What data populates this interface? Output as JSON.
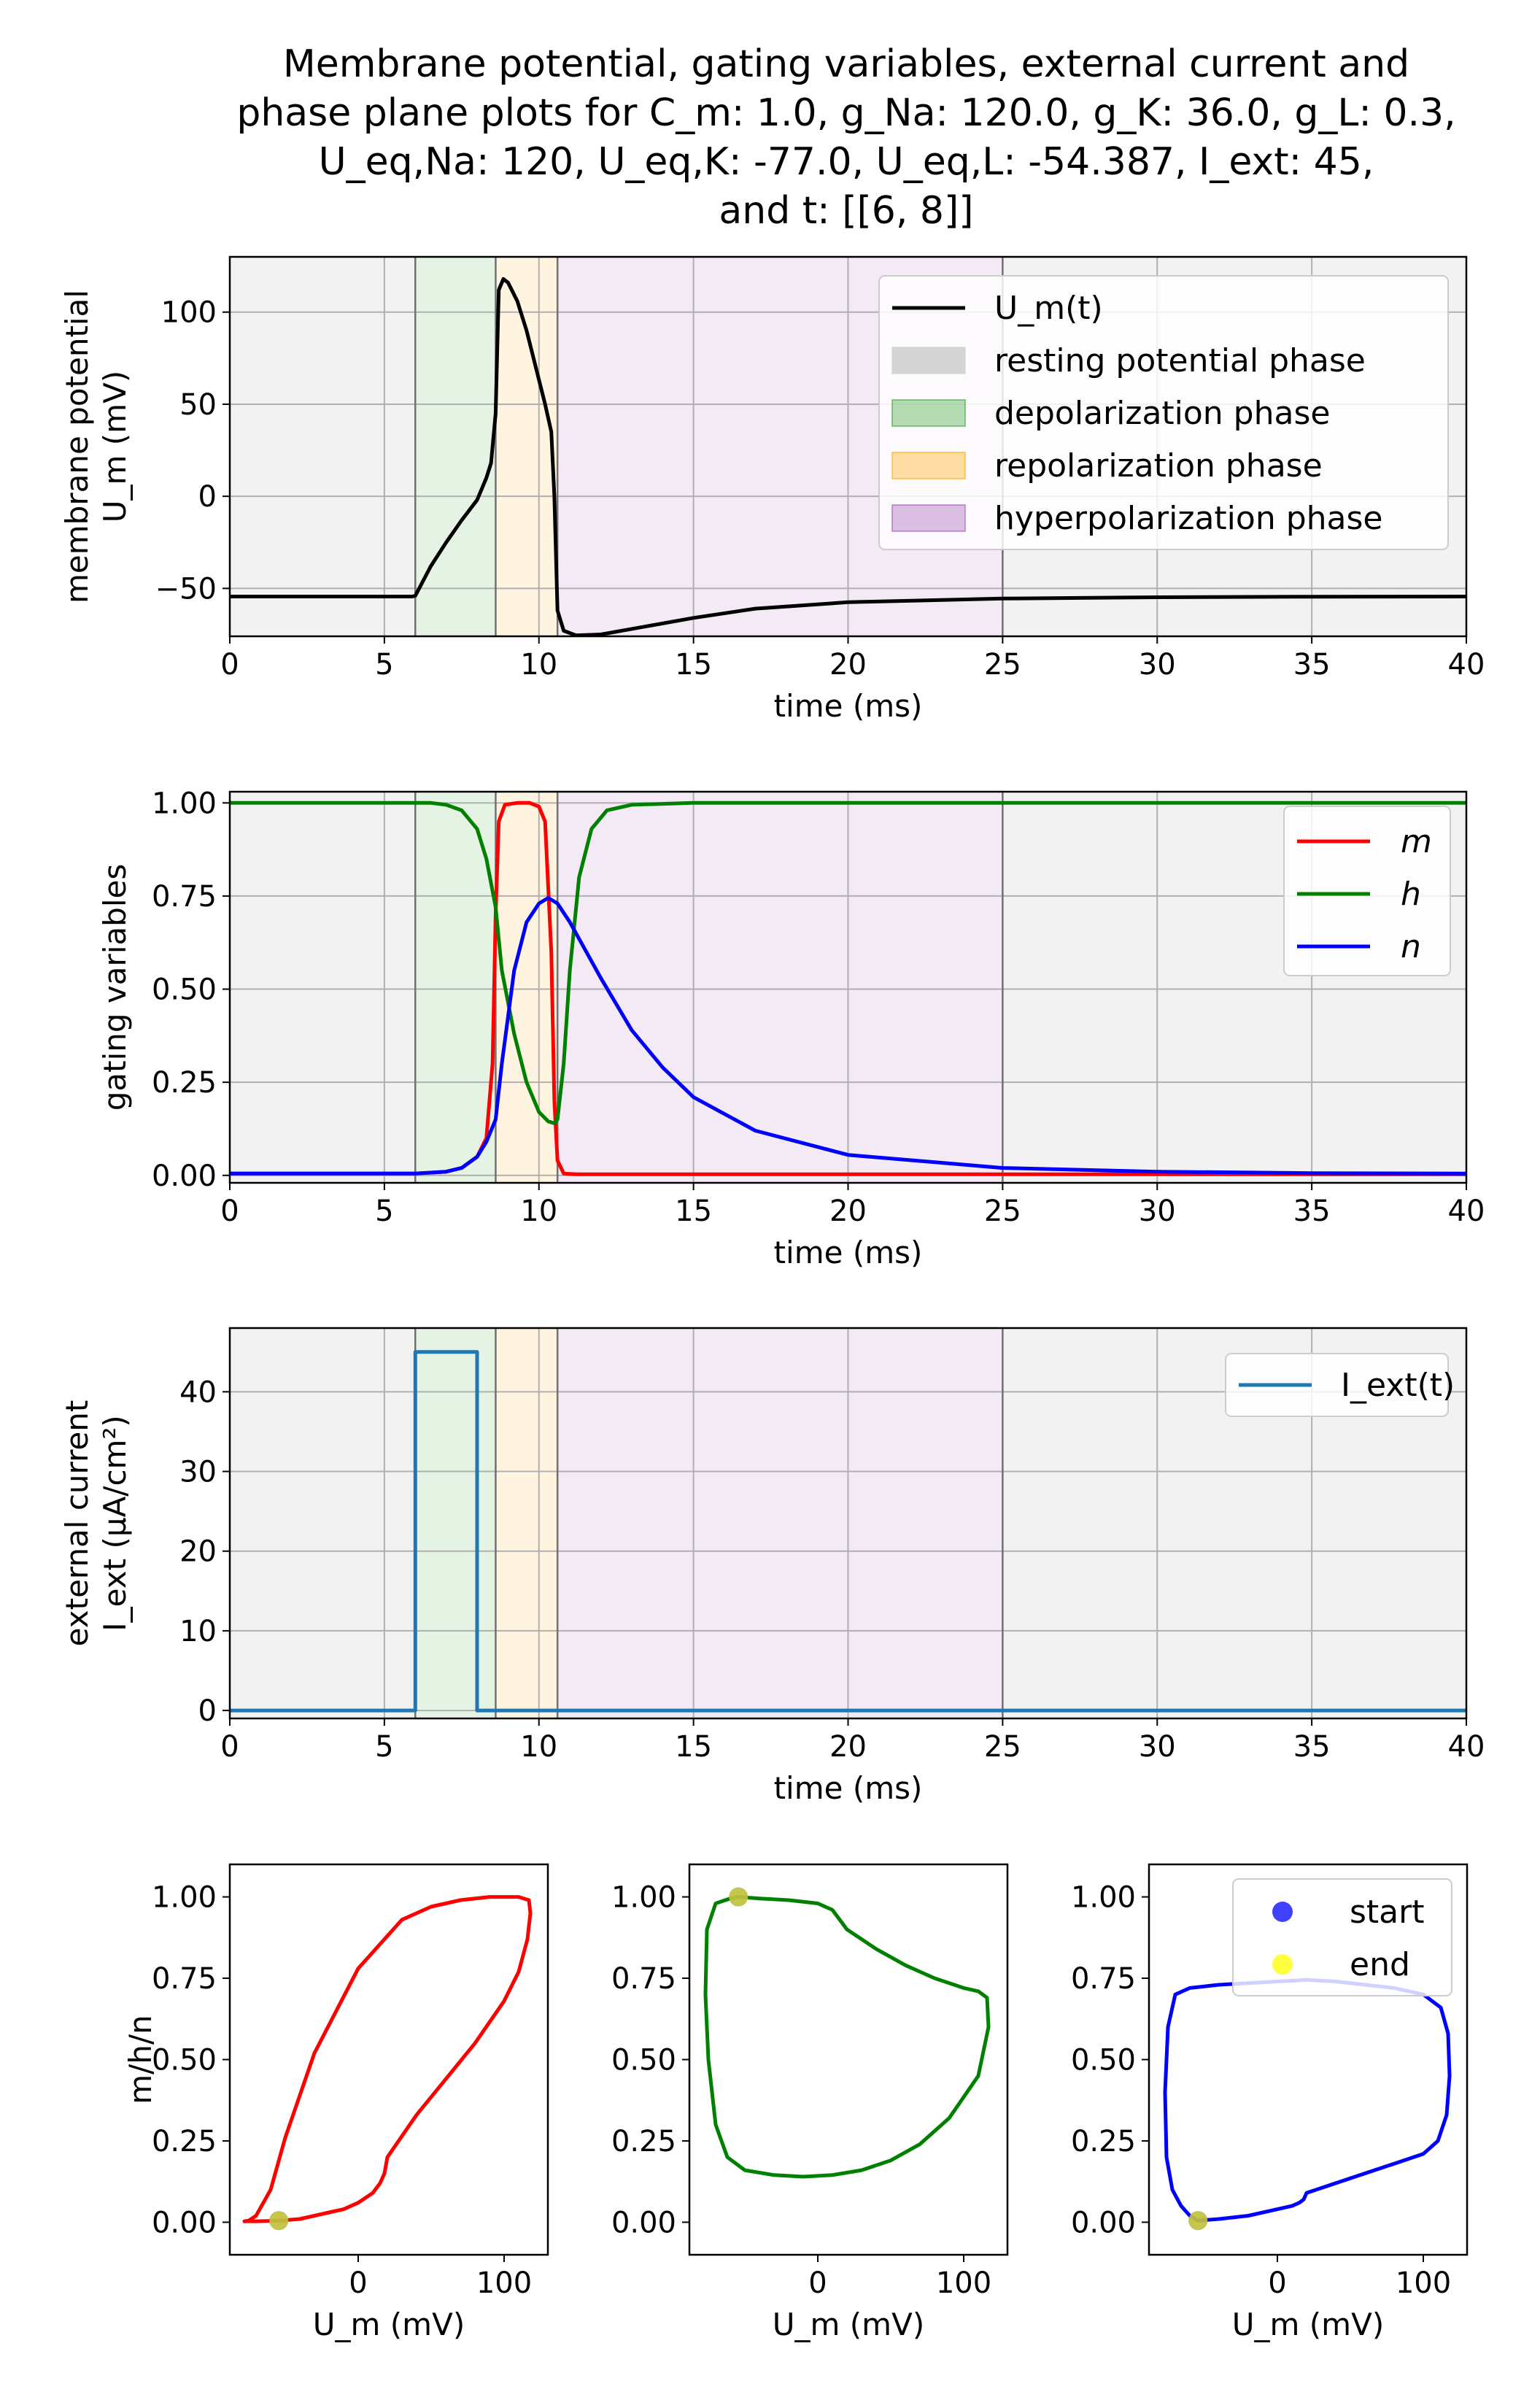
{
  "figure": {
    "title_lines": [
      "Membrane potential, gating variables, external current and",
      "phase plane plots for C_m: 1.0, g_Na: 120.0, g_K: 36.0, g_L: 0.3,",
      "U_eq,Na: 120, U_eq,K: -77.0, U_eq,L: -54.387, I_ext: 45,",
      "and t: [[6, 8]]"
    ]
  },
  "chart_data": [
    {
      "id": "membrane",
      "type": "line",
      "xlabel": "time (ms)",
      "ylabel_lines": [
        "membrane potential",
        "U_m (mV)"
      ],
      "xlim": [
        0,
        40
      ],
      "ylim": [
        -76,
        130
      ],
      "xticks": [
        0,
        5,
        10,
        15,
        20,
        25,
        30,
        35,
        40
      ],
      "yticks": [
        -50,
        0,
        50,
        100
      ],
      "grid": true,
      "legend_position": "upper right",
      "phases": [
        {
          "label": "resting potential phase",
          "color": "#d0d0d0",
          "legend_opacity": 0.9
        },
        {
          "label": "depolarization phase",
          "color": "#2ca02c",
          "legend_opacity": 0.35
        },
        {
          "label": "repolarization phase",
          "color": "#ffa500",
          "legend_opacity": 0.35
        },
        {
          "label": "hyperpolarization phase",
          "color": "#9b4fb0",
          "legend_opacity": 0.35
        }
      ],
      "phase_spans": [
        {
          "phase": 0,
          "x0": 0,
          "x1": 6
        },
        {
          "phase": 1,
          "x0": 6,
          "x1": 8.6
        },
        {
          "phase": 2,
          "x0": 8.6,
          "x1": 10.6
        },
        {
          "phase": 3,
          "x0": 10.6,
          "x1": 25
        },
        {
          "phase": 0,
          "x0": 25,
          "x1": 40
        }
      ],
      "phase_boundaries": [
        6,
        8.6,
        10.6,
        25
      ],
      "series": [
        {
          "name": "U_m(t)",
          "color": "#000000",
          "x": [
            0,
            5.9,
            6.0,
            6.5,
            7.0,
            7.5,
            8.0,
            8.3,
            8.45,
            8.6,
            8.7,
            8.85,
            9.0,
            9.3,
            9.6,
            9.9,
            10.2,
            10.4,
            10.5,
            10.6,
            10.8,
            11.2,
            12,
            13,
            15,
            17,
            20,
            25,
            30,
            35,
            40
          ],
          "y": [
            -54.4,
            -54.4,
            -54,
            -38,
            -25,
            -13,
            -2,
            10,
            18,
            45,
            112,
            118,
            116,
            106,
            90,
            70,
            50,
            35,
            0,
            -62,
            -73,
            -75.5,
            -75,
            -72,
            -66,
            -61,
            -57.5,
            -55.5,
            -54.8,
            -54.5,
            -54.4
          ]
        }
      ]
    },
    {
      "id": "gating",
      "type": "line",
      "xlabel": "time (ms)",
      "ylabel_lines": [
        "gating variables"
      ],
      "xlim": [
        0,
        40
      ],
      "ylim": [
        -0.02,
        1.03
      ],
      "xticks": [
        0,
        5,
        10,
        15,
        20,
        25,
        30,
        35,
        40
      ],
      "yticks": [
        0.0,
        0.25,
        0.5,
        0.75,
        1.0
      ],
      "ytick_labels": [
        "0.00",
        "0.25",
        "0.50",
        "0.75",
        "1.00"
      ],
      "grid": true,
      "legend_position": "upper right",
      "series": [
        {
          "name": "m",
          "color": "#ff0000",
          "x": [
            0,
            6,
            7,
            7.5,
            8,
            8.3,
            8.5,
            8.6,
            8.7,
            8.9,
            9.3,
            9.7,
            10.0,
            10.2,
            10.4,
            10.5,
            10.6,
            10.8,
            11.2,
            12,
            40
          ],
          "y": [
            0.005,
            0.005,
            0.01,
            0.02,
            0.05,
            0.1,
            0.3,
            0.7,
            0.95,
            0.995,
            1.0,
            1.0,
            0.99,
            0.95,
            0.6,
            0.2,
            0.04,
            0.005,
            0.003,
            0.003,
            0.003
          ]
        },
        {
          "name": "h",
          "color": "#008000",
          "x": [
            0,
            6,
            6.5,
            7,
            7.5,
            8,
            8.3,
            8.6,
            8.8,
            9.2,
            9.6,
            10.0,
            10.3,
            10.5,
            10.6,
            10.8,
            11.0,
            11.3,
            11.7,
            12.2,
            13,
            15,
            40
          ],
          "y": [
            1.0,
            1.0,
            1.0,
            0.995,
            0.98,
            0.93,
            0.85,
            0.72,
            0.55,
            0.38,
            0.25,
            0.17,
            0.145,
            0.14,
            0.15,
            0.3,
            0.55,
            0.8,
            0.93,
            0.98,
            0.995,
            1.0,
            1.0
          ]
        },
        {
          "name": "n",
          "color": "#0000ff",
          "x": [
            0,
            6,
            7,
            7.5,
            8,
            8.3,
            8.6,
            8.8,
            9.2,
            9.6,
            10.0,
            10.3,
            10.6,
            11,
            12,
            13,
            14,
            15,
            17,
            20,
            25,
            30,
            35,
            40
          ],
          "y": [
            0.005,
            0.005,
            0.01,
            0.02,
            0.05,
            0.09,
            0.15,
            0.3,
            0.55,
            0.68,
            0.73,
            0.745,
            0.73,
            0.68,
            0.53,
            0.39,
            0.29,
            0.21,
            0.12,
            0.055,
            0.02,
            0.01,
            0.006,
            0.005
          ]
        }
      ]
    },
    {
      "id": "current",
      "type": "line",
      "xlabel": "time (ms)",
      "ylabel_lines": [
        "external current",
        "I_ext (μA/cm²)"
      ],
      "xlim": [
        0,
        40
      ],
      "ylim": [
        -1,
        48
      ],
      "xticks": [
        0,
        5,
        10,
        15,
        20,
        25,
        30,
        35,
        40
      ],
      "yticks": [
        0,
        10,
        20,
        30,
        40
      ],
      "grid": true,
      "legend_position": "upper right",
      "series": [
        {
          "name": "I_ext(t)",
          "color": "#1f77b4",
          "x": [
            0,
            6,
            6,
            8,
            8,
            40
          ],
          "y": [
            0,
            0,
            45,
            45,
            0,
            0
          ]
        }
      ]
    },
    {
      "id": "phase-m",
      "type": "line",
      "xlabel": "U_m (mV)",
      "ylabel_lines": [
        "m/h/n"
      ],
      "xlim": [
        -88,
        130
      ],
      "ylim": [
        -0.1,
        1.1
      ],
      "xticks": [
        0,
        100
      ],
      "yticks": [
        0.0,
        0.25,
        0.5,
        0.75,
        1.0
      ],
      "ytick_labels": [
        "0.00",
        "0.25",
        "0.50",
        "0.75",
        "1.00"
      ],
      "grid": false,
      "series": [
        {
          "name": "m",
          "color": "#ff0000",
          "x": [
            -54.4,
            -40,
            -30,
            -20,
            -10,
            0,
            10,
            15,
            18,
            20,
            40,
            60,
            80,
            100,
            110,
            116,
            118,
            117,
            110,
            90,
            70,
            50,
            30,
            0,
            -30,
            -50,
            -60,
            -70,
            -75,
            -78,
            -70,
            -60,
            -54.4
          ],
          "y": [
            0.005,
            0.01,
            0.02,
            0.03,
            0.04,
            0.06,
            0.09,
            0.12,
            0.15,
            0.2,
            0.33,
            0.44,
            0.55,
            0.68,
            0.77,
            0.87,
            0.95,
            0.99,
            1.0,
            1.0,
            0.99,
            0.97,
            0.93,
            0.78,
            0.52,
            0.26,
            0.1,
            0.02,
            0.005,
            0.003,
            0.003,
            0.004,
            0.005
          ]
        },
        {
          "name": "start",
          "color": "#0000ff",
          "marker": true,
          "x": [
            -54.4
          ],
          "y": [
            0.005
          ]
        },
        {
          "name": "end",
          "color": "#ffff00",
          "marker": true,
          "x": [
            -54.4
          ],
          "y": [
            0.005
          ]
        }
      ]
    },
    {
      "id": "phase-h",
      "type": "line",
      "xlabel": "U_m (mV)",
      "ylabel_lines": [],
      "xlim": [
        -88,
        130
      ],
      "ylim": [
        -0.1,
        1.1
      ],
      "xticks": [
        0,
        100
      ],
      "yticks": [
        0.0,
        0.25,
        0.5,
        0.75,
        1.0
      ],
      "ytick_labels": [
        "0.00",
        "0.25",
        "0.50",
        "0.75",
        "1.00"
      ],
      "grid": false,
      "series": [
        {
          "name": "h",
          "color": "#008000",
          "x": [
            -54.4,
            -40,
            -20,
            0,
            10,
            15,
            20,
            40,
            60,
            80,
            100,
            110,
            116,
            117,
            110,
            90,
            70,
            50,
            30,
            10,
            -10,
            -30,
            -50,
            -62,
            -70,
            -75,
            -77,
            -76,
            -70,
            -60,
            -54.4
          ],
          "y": [
            1.0,
            0.995,
            0.99,
            0.98,
            0.96,
            0.93,
            0.9,
            0.84,
            0.79,
            0.75,
            0.72,
            0.71,
            0.69,
            0.6,
            0.45,
            0.32,
            0.24,
            0.19,
            0.16,
            0.145,
            0.14,
            0.145,
            0.16,
            0.2,
            0.3,
            0.5,
            0.7,
            0.9,
            0.98,
            0.995,
            1.0
          ]
        },
        {
          "name": "start",
          "color": "#0000ff",
          "marker": true,
          "x": [
            -54.4
          ],
          "y": [
            1.0
          ]
        },
        {
          "name": "end",
          "color": "#ffff00",
          "marker": true,
          "x": [
            -54.4
          ],
          "y": [
            1.0
          ]
        }
      ]
    },
    {
      "id": "phase-n",
      "type": "line",
      "xlabel": "U_m (mV)",
      "ylabel_lines": [],
      "xlim": [
        -88,
        130
      ],
      "ylim": [
        -0.1,
        1.1
      ],
      "xticks": [
        0,
        100
      ],
      "yticks": [
        0.0,
        0.25,
        0.5,
        0.75,
        1.0
      ],
      "ytick_labels": [
        "0.00",
        "0.25",
        "0.50",
        "0.75",
        "1.00"
      ],
      "grid": false,
      "legend_position": "upper right",
      "series": [
        {
          "name": "n",
          "color": "#0000ff",
          "x": [
            -54.4,
            -40,
            -20,
            0,
            10,
            15,
            18,
            20,
            40,
            60,
            80,
            100,
            110,
            116,
            118,
            117,
            112,
            100,
            80,
            60,
            40,
            20,
            0,
            -20,
            -40,
            -60,
            -70,
            -75,
            -77,
            -76,
            -72,
            -66,
            -60,
            -54.4
          ],
          "y": [
            0.005,
            0.01,
            0.02,
            0.04,
            0.05,
            0.06,
            0.07,
            0.09,
            0.12,
            0.15,
            0.18,
            0.21,
            0.25,
            0.33,
            0.45,
            0.58,
            0.66,
            0.7,
            0.72,
            0.73,
            0.74,
            0.745,
            0.74,
            0.735,
            0.73,
            0.72,
            0.7,
            0.6,
            0.4,
            0.2,
            0.1,
            0.05,
            0.02,
            0.005
          ]
        },
        {
          "name": "start",
          "color": "#0000ff",
          "marker": true,
          "x": [
            -54.4
          ],
          "y": [
            0.005
          ]
        },
        {
          "name": "end",
          "color": "#ffff00",
          "marker": true,
          "x": [
            -54.4
          ],
          "y": [
            0.005
          ]
        }
      ]
    }
  ]
}
